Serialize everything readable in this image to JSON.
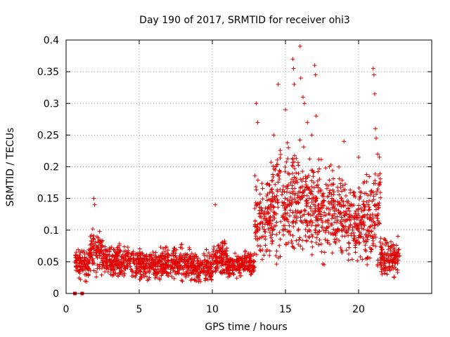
{
  "chart_data": {
    "type": "scatter",
    "title": "Day 190 of 2017, SRMTID for receiver ohi3",
    "xlabel": "GPS time / hours",
    "ylabel": "SRMTID / TECUs",
    "xlim": [
      0,
      25
    ],
    "ylim": [
      0,
      0.4
    ],
    "xticks": [
      0,
      5,
      10,
      15,
      20
    ],
    "xtick_labels": [
      "0",
      "5",
      "10",
      "15",
      "20"
    ],
    "yticks": [
      0,
      0.05,
      0.1,
      0.15,
      0.2,
      0.25,
      0.3,
      0.35,
      0.4
    ],
    "ytick_labels": [
      "0",
      "0.05",
      "0.1",
      "0.15",
      "0.2",
      "0.25",
      "0.3",
      "0.35",
      "0.4"
    ],
    "grid": true,
    "marker_color": "#e00000",
    "series": [
      {
        "name": "SRMTID",
        "marker": "plus",
        "profile": [
          {
            "from": 0.6,
            "to": 1.6,
            "mean": 0.045,
            "spread": 0.022
          },
          {
            "from": 1.6,
            "to": 2.5,
            "mean": 0.065,
            "spread": 0.03
          },
          {
            "from": 2.5,
            "to": 4.5,
            "mean": 0.05,
            "spread": 0.022
          },
          {
            "from": 4.5,
            "to": 6.0,
            "mean": 0.045,
            "spread": 0.02
          },
          {
            "from": 6.0,
            "to": 8.5,
            "mean": 0.047,
            "spread": 0.022
          },
          {
            "from": 8.5,
            "to": 10.0,
            "mean": 0.04,
            "spread": 0.02
          },
          {
            "from": 10.0,
            "to": 11.0,
            "mean": 0.055,
            "spread": 0.025
          },
          {
            "from": 11.0,
            "to": 12.9,
            "mean": 0.045,
            "spread": 0.018
          },
          {
            "from": 12.9,
            "to": 14.0,
            "mean": 0.12,
            "spread": 0.06
          },
          {
            "from": 14.0,
            "to": 17.0,
            "mean": 0.14,
            "spread": 0.075
          },
          {
            "from": 17.0,
            "to": 19.0,
            "mean": 0.13,
            "spread": 0.06
          },
          {
            "from": 19.0,
            "to": 21.0,
            "mean": 0.11,
            "spread": 0.055
          },
          {
            "from": 21.0,
            "to": 21.5,
            "mean": 0.13,
            "spread": 0.08
          },
          {
            "from": 21.5,
            "to": 22.8,
            "mean": 0.055,
            "spread": 0.025
          }
        ],
        "highlights": [
          [
            1.9,
            0.15
          ],
          [
            1.95,
            0.14
          ],
          [
            10.2,
            0.14
          ],
          [
            13.0,
            0.3
          ],
          [
            13.1,
            0.27
          ],
          [
            14.5,
            0.33
          ],
          [
            15.0,
            0.29
          ],
          [
            15.5,
            0.37
          ],
          [
            15.55,
            0.355
          ],
          [
            15.6,
            0.33
          ],
          [
            16.0,
            0.39
          ],
          [
            16.05,
            0.34
          ],
          [
            16.2,
            0.31
          ],
          [
            16.3,
            0.3
          ],
          [
            16.5,
            0.27
          ],
          [
            17.0,
            0.36
          ],
          [
            17.05,
            0.345
          ],
          [
            17.1,
            0.28
          ],
          [
            19.0,
            0.24
          ],
          [
            21.0,
            0.355
          ],
          [
            21.05,
            0.345
          ],
          [
            21.1,
            0.315
          ],
          [
            21.15,
            0.26
          ],
          [
            21.2,
            0.245
          ],
          [
            20.0,
            0.215
          ],
          [
            14.2,
            0.25
          ],
          [
            15.2,
            0.23
          ],
          [
            16.8,
            0.25
          ],
          [
            18.0,
            0.2
          ],
          [
            21.3,
            0.22
          ]
        ],
        "zero_markers": [
          0.6,
          1.1
        ]
      }
    ]
  }
}
